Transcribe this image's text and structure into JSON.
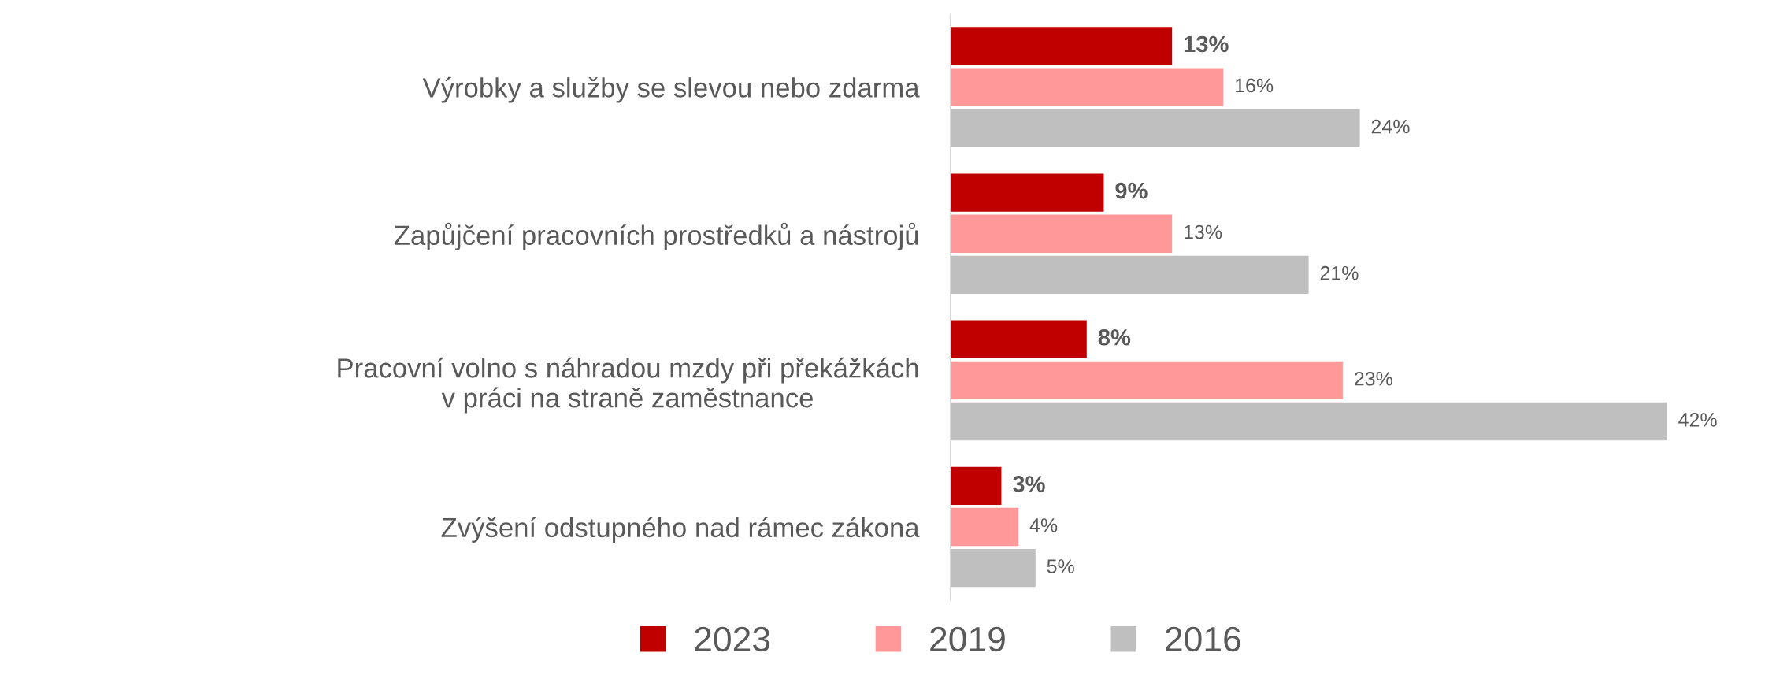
{
  "chart_data": {
    "type": "bar",
    "orientation": "horizontal",
    "categories": [
      "Výrobky a služby se slevou nebo zdarma",
      "Zapůjčení pracovních prostředků a nástrojů",
      "Pracovní volno s náhradou mzdy při překážkách\nv práci na straně zaměstnance",
      "Zvýšení odstupného nad rámec zákona"
    ],
    "series": [
      {
        "name": "2023",
        "color": "#c00000",
        "values": [
          13,
          9,
          8,
          3
        ],
        "value_labels": [
          "13%",
          "9%",
          "8%",
          "3%"
        ]
      },
      {
        "name": "2019",
        "color": "#ff9999",
        "values": [
          16,
          13,
          23,
          4
        ],
        "value_labels": [
          "16%",
          "13%",
          "23%",
          "4%"
        ]
      },
      {
        "name": "2016",
        "color": "#bfbfbf",
        "values": [
          24,
          21,
          42,
          5
        ],
        "value_labels": [
          "24%",
          "21%",
          "42%",
          "5%"
        ]
      }
    ],
    "legend": "bottom",
    "grid": false,
    "tick_labels": "y"
  }
}
